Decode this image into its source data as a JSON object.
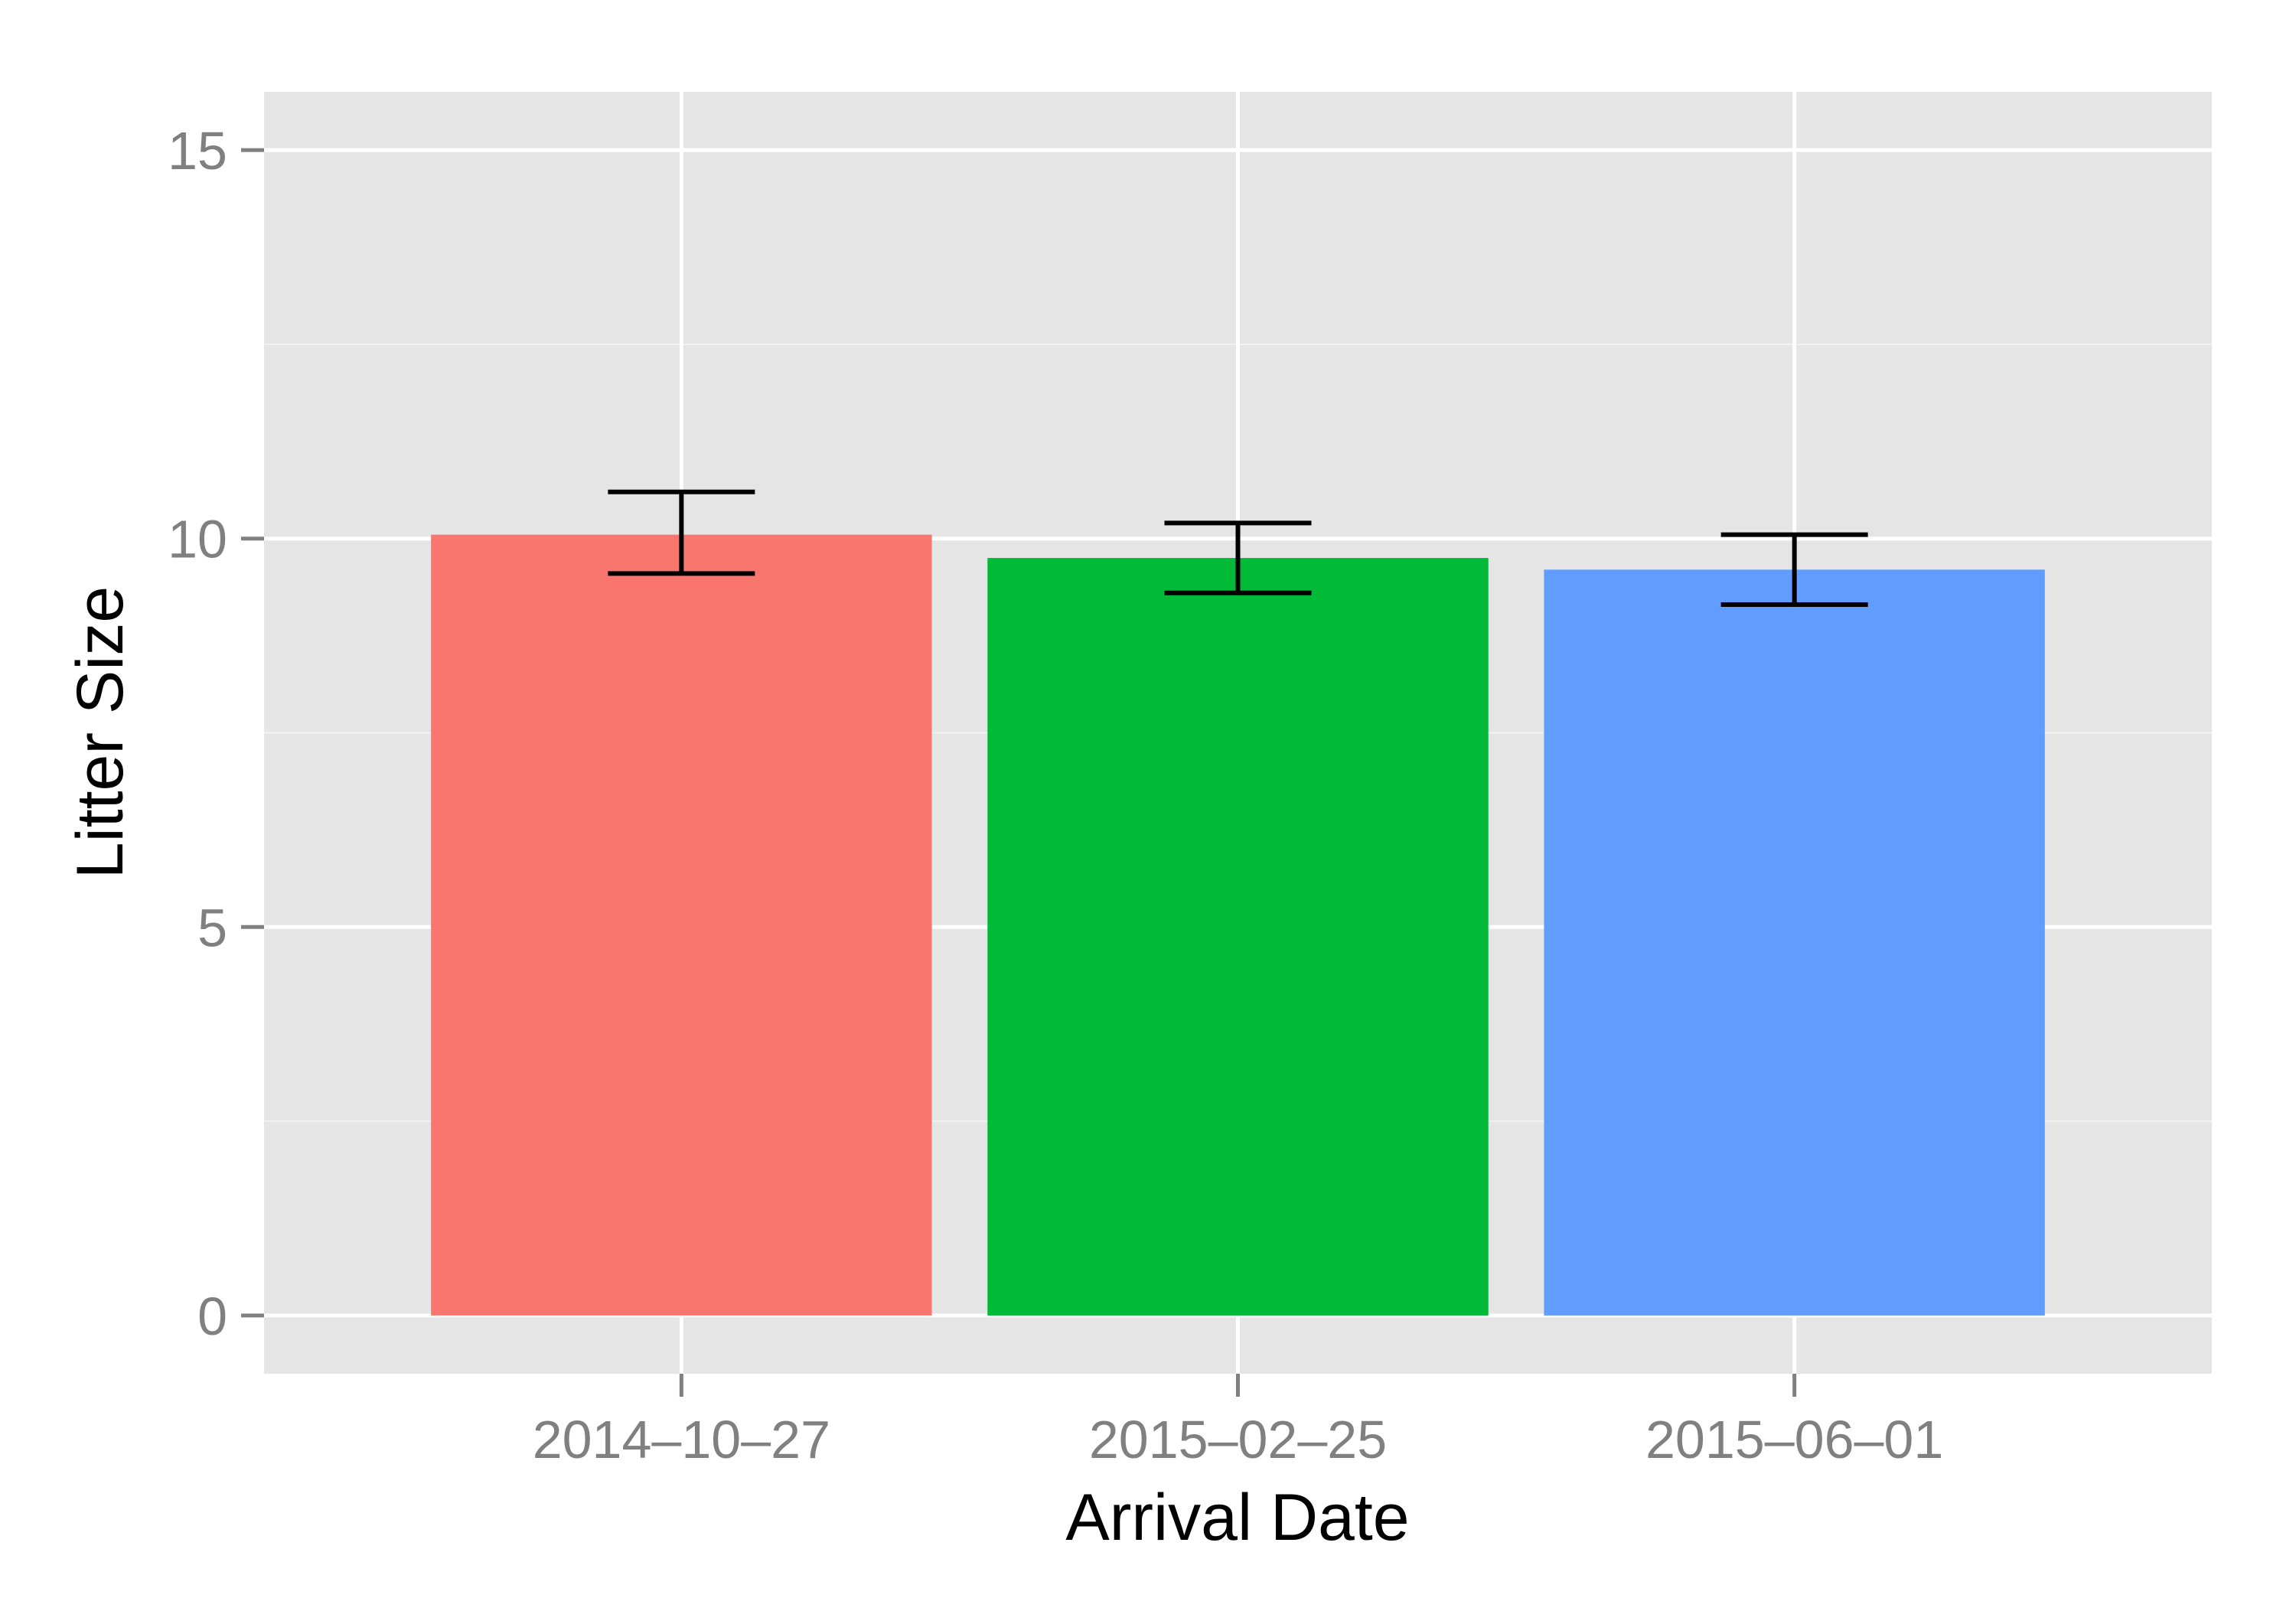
{
  "chart_data": {
    "type": "bar",
    "title": "",
    "xlabel": "Arrival Date",
    "ylabel": "Litter Size",
    "categories": [
      "2014–10–27",
      "2015–02–25",
      "2015–06–01"
    ],
    "values": [
      10.05,
      9.75,
      9.6
    ],
    "error_bars": [
      {
        "low": 9.55,
        "high": 10.6
      },
      {
        "low": 9.3,
        "high": 10.2
      },
      {
        "low": 9.15,
        "high": 10.05
      }
    ],
    "colors": [
      "#F8766D",
      "#00BA38",
      "#619CFF"
    ],
    "ylim": [
      -0.75,
      15.75
    ],
    "yticks": [
      0,
      5,
      10,
      15
    ],
    "grid": true,
    "legend": "none",
    "theme_colors": {
      "panel_background": "#E5E5E5",
      "grid_major": "#FFFFFF",
      "grid_minor": "#F2F2F2",
      "tick_label": "#808080",
      "axis_title": "#000000",
      "error_bar": "#000000"
    }
  }
}
